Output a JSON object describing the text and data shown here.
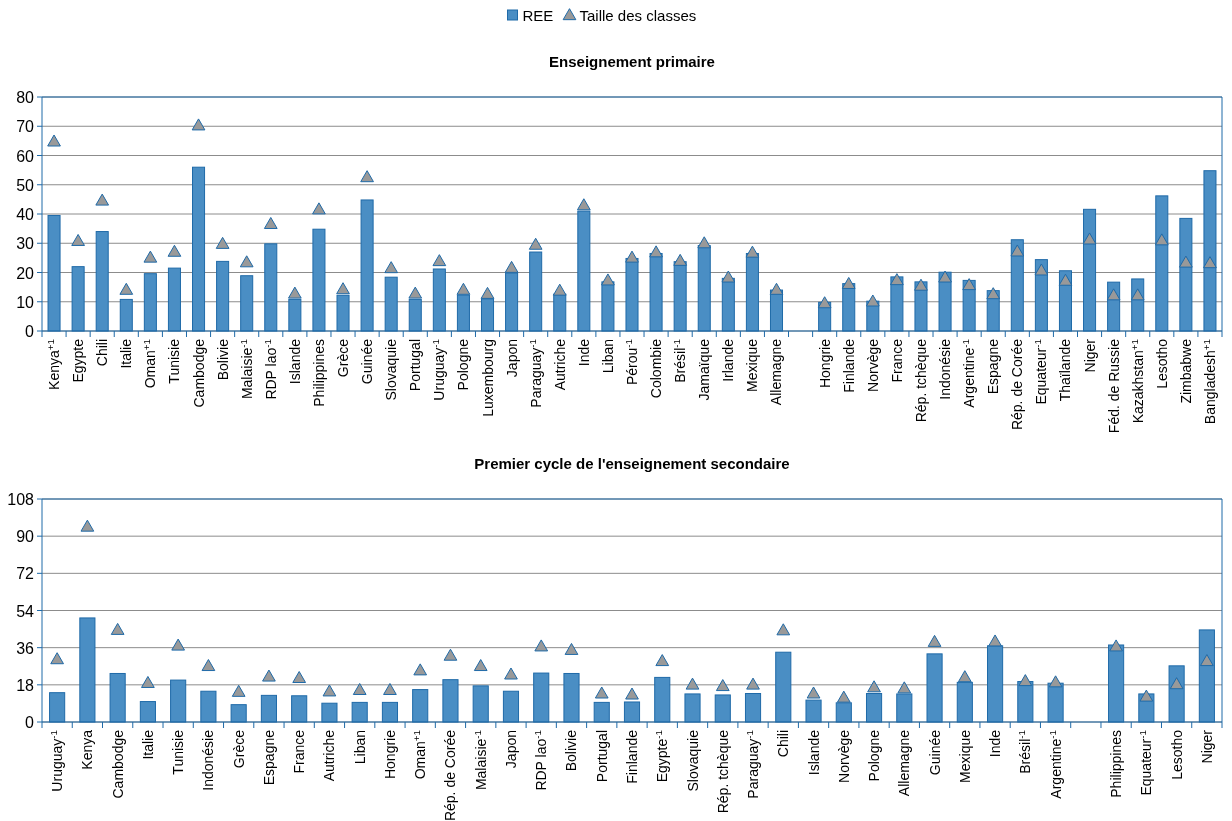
{
  "chart_data": [
    {
      "type": "bar",
      "title": "Enseignement primaire",
      "legend": "top",
      "grid": "y",
      "marker": "triangle",
      "ylim": [
        0,
        80
      ],
      "yticks": [
        0,
        10,
        20,
        30,
        40,
        50,
        60,
        70,
        80
      ],
      "categories": [
        "Kenya$^{+1}$",
        "Egypte",
        "Chili",
        "Italie",
        "Oman$^{+1}$",
        "Tunisie",
        "Cambodge",
        "Bolivie",
        "Malaisie$^{-1}$",
        "RDP lao$^{-1}$",
        "Islande",
        "Philippines",
        "Grèce",
        "Guinée",
        "Slovaquie",
        "Portugal",
        "Uruguay$^{-1}$",
        "Pologne",
        "Luxembourg",
        "Japon",
        "Paraguay$^{-1}$",
        "Autriche",
        "Inde",
        "Liban",
        "Pérou$^{-1}$",
        "Colombie",
        "Brésil$^{-1}$",
        "Jamaïque",
        "Irlande",
        "Mexique",
        "Allemagne",
        null,
        "Hongrie",
        "Finlande",
        "Norvège",
        "France",
        "Rép. tchèque",
        "Indonésie",
        "Argentine$^{-1}$",
        "Espagne",
        "Rép. de Corée",
        "Equateur$^{-1}$",
        "Thaïlande",
        "Niger",
        "Féd. de Russie",
        "Kazakhstan$^{+1}$",
        "Lesotho",
        "Zimbabwe",
        "Bangladesh$^{+1}$"
      ],
      "series": [
        {
          "name": "REE",
          "color": "#4a8ec4",
          "values": [
            39.5,
            22,
            34,
            10.8,
            19.6,
            21.5,
            56,
            23.8,
            18.9,
            29.8,
            10.8,
            34.8,
            12.2,
            44.8,
            18.4,
            10.8,
            21.2,
            12.3,
            11,
            19.8,
            27,
            12.6,
            41,
            16.8,
            24.8,
            26.5,
            23.7,
            29.2,
            18,
            26.5,
            14,
            null,
            9.8,
            16.2,
            10.2,
            18.5,
            16.8,
            20.1,
            17.3,
            13.8,
            31.2,
            24.4,
            20.6,
            41.6,
            16.7,
            17.8,
            46.2,
            38.5,
            54.8
          ]
        },
        {
          "name": "Taille des classes",
          "type": "scatter",
          "color": "#999999",
          "values": [
            64.5,
            30.5,
            44.3,
            13.8,
            24.8,
            26.8,
            70,
            29.5,
            23.2,
            36.3,
            12.5,
            41.3,
            14,
            52.3,
            21.2,
            12.5,
            23.6,
            13.8,
            12.4,
            21.3,
            29.2,
            13.5,
            42.7,
            17,
            24.8,
            26.6,
            23.7,
            29.7,
            18,
            26.5,
            13.8,
            null,
            9.2,
            15.8,
            9.8,
            17.1,
            15.2,
            18,
            15.4,
            12.3,
            26.9,
            20.4,
            16.9,
            31,
            11.9,
            11.9,
            30.7,
            23.1,
            22.9
          ]
        }
      ]
    },
    {
      "type": "bar",
      "title": "Premier cycle de l'enseignement secondaire",
      "grid": "y",
      "marker": "triangle",
      "ylim": [
        0,
        108
      ],
      "yticks": [
        0,
        18,
        36,
        54,
        72,
        90,
        108
      ],
      "categories": [
        "Uruguay$^{-1}$",
        "Kenya",
        "Cambodge",
        "Italie",
        "Tunisie",
        "Indonésie",
        "Grèce",
        "Espagne",
        "France",
        "Autriche",
        "Liban",
        "Hongrie",
        "Oman$^{+1}$",
        "Rép. de Corée",
        "Malaisie$^{-1}$",
        "Japon",
        "RDP lao$^{-1}$",
        "Bolivie",
        "Portugal",
        "Finlande",
        "Egypte$^{-1}$",
        "Slovaquie",
        "Rép. tchèque",
        "Paraguay$^{-1}$",
        "Chili",
        "Islande",
        "Norvège",
        "Pologne",
        "Allemagne",
        "Guinée",
        "Mexique",
        "Inde",
        "Brésil$^{-1}$",
        "Argentine$^{-1}$",
        null,
        "Philippines",
        "Equateur$^{-1}$",
        "Lesotho",
        "Niger"
      ],
      "series": [
        {
          "color": "#4a8ec4",
          "values": [
            14.2,
            50.4,
            23.5,
            9.9,
            20.3,
            14.9,
            8.4,
            12.9,
            12.7,
            9.1,
            9.5,
            9.5,
            15.7,
            20.5,
            17.5,
            14.9,
            23.7,
            23.5,
            9.5,
            9.7,
            21.6,
            13.6,
            13.1,
            13.8,
            33.8,
            10.6,
            9.3,
            13.8,
            13.6,
            33,
            19.2,
            36.9,
            19.6,
            18.8,
            null,
            37.3,
            13.6,
            27.2,
            44.6
          ]
        },
        {
          "type": "scatter",
          "color": "#999999",
          "values": [
            30,
            94.2,
            44.2,
            18.5,
            36.6,
            26.7,
            14.2,
            21.6,
            20.9,
            14.4,
            15.1,
            15.1,
            24.6,
            31.7,
            26.7,
            22.6,
            36.2,
            34.5,
            13.4,
            12.9,
            29.1,
            17.7,
            17,
            17.7,
            44,
            13.4,
            11.4,
            16.4,
            15.9,
            38.4,
            21.3,
            38.6,
            19.4,
            18.8,
            null,
            36.2,
            11.9,
            17.9,
            29.1
          ]
        }
      ]
    }
  ]
}
